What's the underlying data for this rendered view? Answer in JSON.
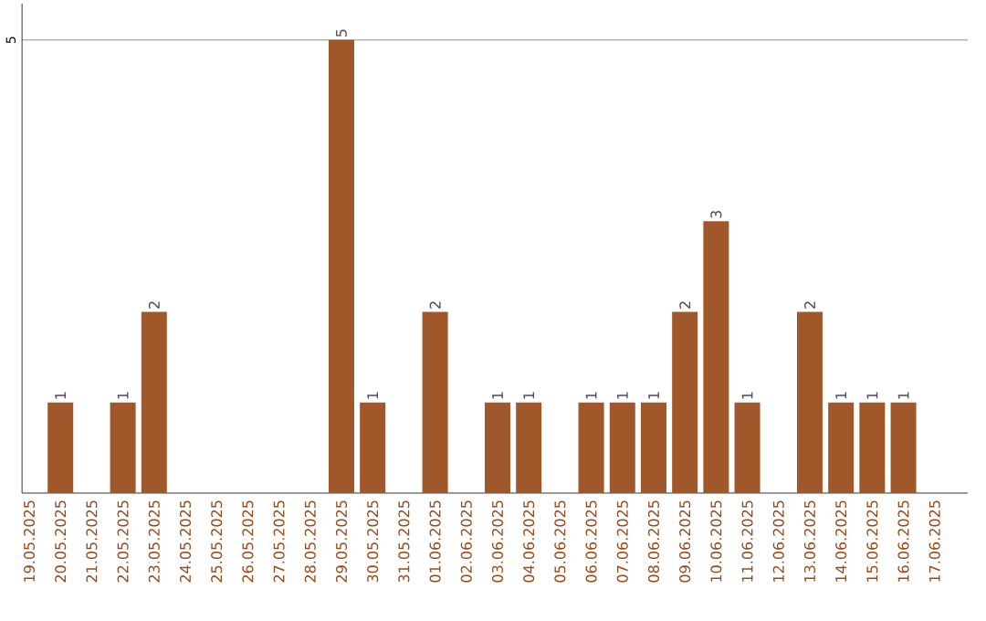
{
  "chart_data": {
    "type": "bar",
    "categories": [
      "19.05.2025",
      "20.05.2025",
      "21.05.2025",
      "22.05.2025",
      "23.05.2025",
      "24.05.2025",
      "25.05.2025",
      "26.05.2025",
      "27.05.2025",
      "28.05.2025",
      "29.05.2025",
      "30.05.2025",
      "31.05.2025",
      "01.06.2025",
      "02.06.2025",
      "03.06.2025",
      "04.06.2025",
      "05.06.2025",
      "06.06.2025",
      "07.06.2025",
      "08.06.2025",
      "09.06.2025",
      "10.06.2025",
      "11.06.2025",
      "12.06.2025",
      "13.06.2025",
      "14.06.2025",
      "15.06.2025",
      "16.06.2025",
      "17.06.2025"
    ],
    "values": [
      0,
      1,
      0,
      1,
      2,
      0,
      0,
      0,
      0,
      0,
      5,
      1,
      0,
      2,
      0,
      1,
      1,
      0,
      1,
      1,
      1,
      2,
      3,
      1,
      0,
      2,
      1,
      1,
      1,
      0
    ],
    "value_labels": [
      null,
      "1",
      null,
      "1",
      "2",
      null,
      null,
      null,
      null,
      null,
      "5",
      "1",
      null,
      "2",
      null,
      "1",
      "1",
      null,
      "1",
      "1",
      "1",
      "2",
      "3",
      "1",
      null,
      "2",
      "1",
      "1",
      "1",
      null
    ],
    "color": "#a0582a",
    "ylim": [
      0,
      5.4
    ],
    "yticks": [
      5
    ],
    "grid": "y"
  }
}
